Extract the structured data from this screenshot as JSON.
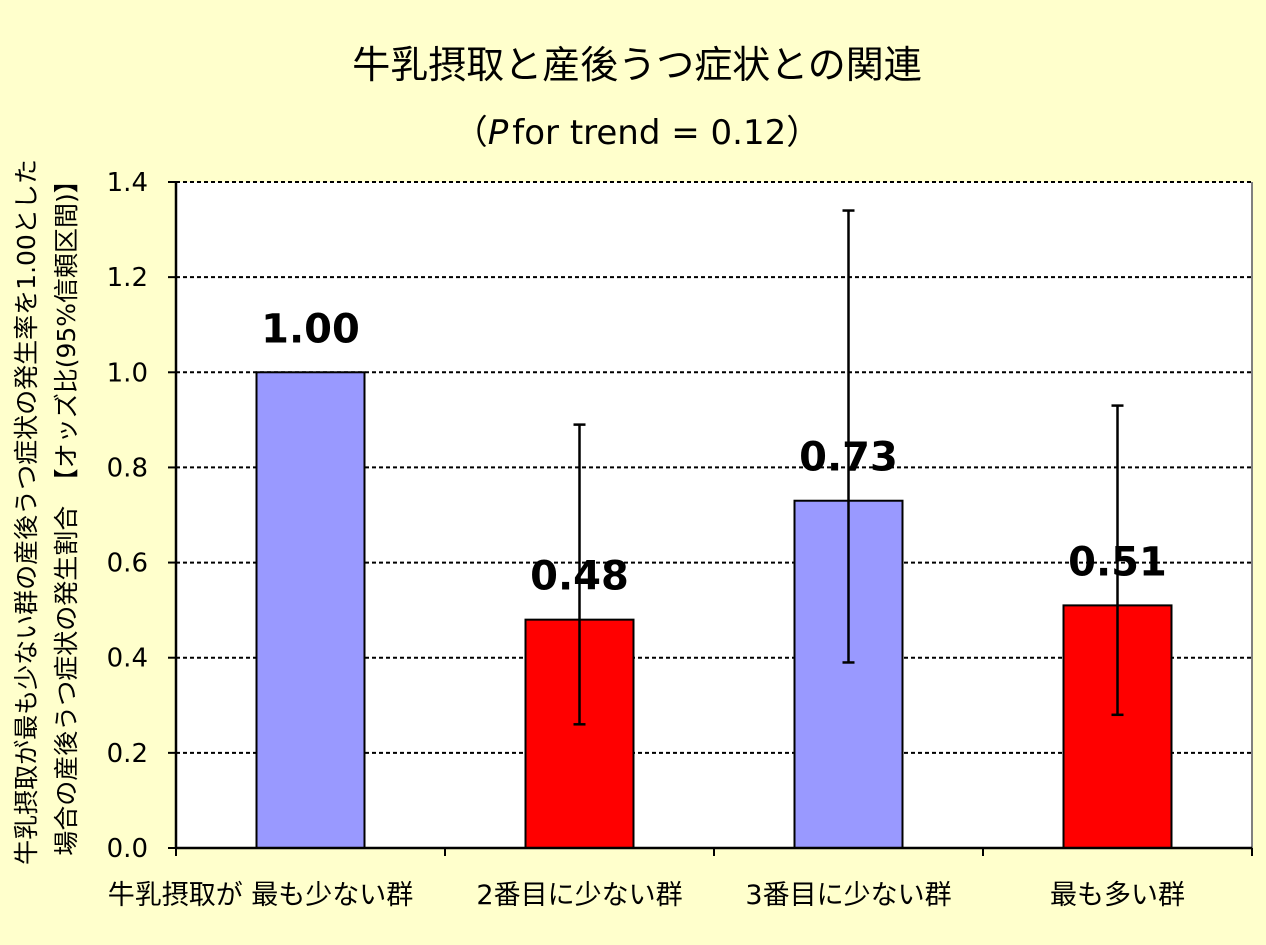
{
  "chart_data": {
    "type": "bar",
    "title": "牛乳摂取と産後うつ症状との関連",
    "subtitle": {
      "prefix": "（",
      "p": "P",
      "text": "for trend = 0.12",
      "suffix": "）"
    },
    "ylabel_lines": [
      "牛乳摂取が最も少ない群の産後うつ症状の発生率を1.00とした",
      "場合の産後うつ症状の発生割合　【オッズ比(95%信頼区間)】"
    ],
    "categories": [
      "牛乳摂取が 最も少ない群",
      "2番目に少ない群",
      "3番目に少ない群",
      "最も多い群"
    ],
    "values": [
      1.0,
      0.48,
      0.73,
      0.51
    ],
    "value_labels": [
      "1.00",
      "0.48",
      "0.73",
      "0.51"
    ],
    "error_low": [
      null,
      0.26,
      0.39,
      0.28
    ],
    "error_high": [
      null,
      0.89,
      1.34,
      0.93
    ],
    "bar_colors": [
      "#9999ff",
      "#ff0000",
      "#9999ff",
      "#ff0000"
    ],
    "ylim": [
      0,
      1.4
    ],
    "yticks": [
      "0.0",
      "0.2",
      "0.4",
      "0.6",
      "0.8",
      "1.0",
      "1.2",
      "1.4"
    ],
    "grid": true,
    "background_color": "#ffffcc"
  }
}
